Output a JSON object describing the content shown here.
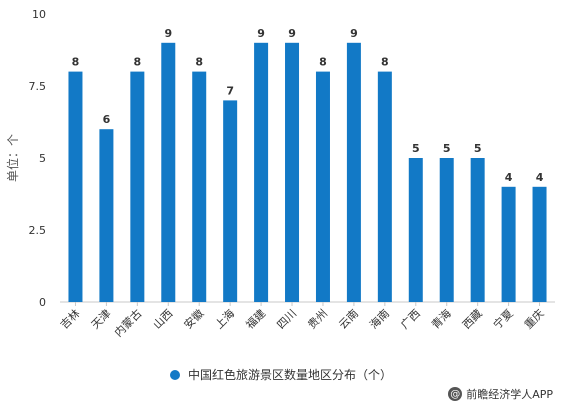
{
  "chart_data": {
    "type": "bar",
    "categories": [
      "吉林",
      "天津",
      "内蒙古",
      "山西",
      "安徽",
      "上海",
      "福建",
      "四川",
      "贵州",
      "云南",
      "海南",
      "广西",
      "青海",
      "西藏",
      "宁夏",
      "重庆"
    ],
    "series": [
      {
        "name": "中国红色旅游景区数量地区分布（个）",
        "values": [
          8,
          6,
          8,
          9,
          8,
          7,
          9,
          9,
          8,
          9,
          8,
          5,
          5,
          5,
          4,
          4
        ]
      }
    ],
    "ylabel": "单位：个",
    "ylim": [
      0,
      10
    ],
    "yticks": [
      0,
      2.5,
      5,
      7.5,
      10
    ],
    "ytick_labels": [
      "0",
      "2.5",
      "5",
      "7.5",
      "10"
    ],
    "grid": false,
    "legend_position": "bottom",
    "data_labels": true
  },
  "colors": {
    "bar": "#1279c6",
    "axis": "#c8c8c8",
    "text": "#333333"
  },
  "footer": {
    "credit_icon": "front-icon",
    "credit_symbol": "@",
    "credit_text": "前瞻经济学人APP"
  }
}
